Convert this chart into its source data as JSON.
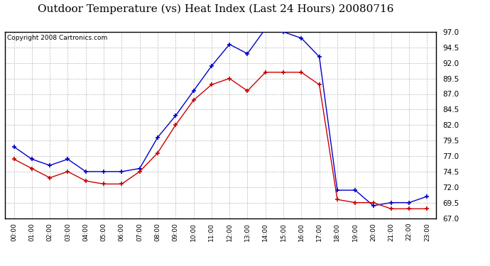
{
  "title": "Outdoor Temperature (vs) Heat Index (Last 24 Hours) 20080716",
  "copyright": "Copyright 2008 Cartronics.com",
  "hours": [
    "00:00",
    "01:00",
    "02:00",
    "03:00",
    "04:00",
    "05:00",
    "06:00",
    "07:00",
    "08:00",
    "09:00",
    "10:00",
    "11:00",
    "12:00",
    "13:00",
    "14:00",
    "15:00",
    "16:00",
    "17:00",
    "18:00",
    "19:00",
    "20:00",
    "21:00",
    "22:00",
    "23:00"
  ],
  "blue_temp": [
    78.5,
    76.5,
    75.5,
    76.5,
    74.5,
    74.5,
    74.5,
    75.0,
    80.0,
    83.5,
    87.5,
    91.5,
    95.0,
    93.5,
    97.5,
    97.0,
    96.0,
    93.0,
    71.5,
    71.5,
    69.0,
    69.5,
    69.5,
    70.5
  ],
  "red_heat": [
    76.5,
    75.0,
    73.5,
    74.5,
    73.0,
    72.5,
    72.5,
    74.5,
    77.5,
    82.0,
    86.0,
    88.5,
    89.5,
    87.5,
    90.5,
    90.5,
    90.5,
    88.5,
    70.0,
    69.5,
    69.5,
    68.5,
    68.5,
    68.5
  ],
  "ylim": [
    67.0,
    97.0
  ],
  "yticks": [
    67.0,
    69.5,
    72.0,
    74.5,
    77.0,
    79.5,
    82.0,
    84.5,
    87.0,
    89.5,
    92.0,
    94.5,
    97.0
  ],
  "blue_color": "#0000cc",
  "red_color": "#cc0000",
  "bg_color": "#ffffff",
  "grid_color": "#bbbbbb",
  "title_fontsize": 11,
  "copyright_fontsize": 6.5
}
